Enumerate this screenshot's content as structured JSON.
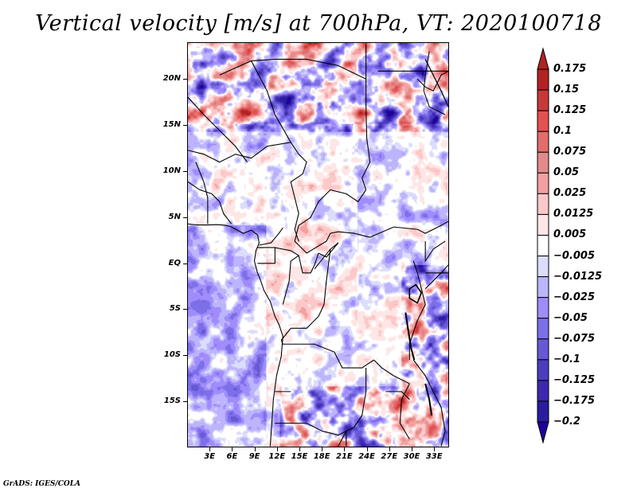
{
  "title": "Vertical velocity [m/s] at 700hPa, VT: 2020100718",
  "credit": "GrADS: IGES/COLA",
  "map": {
    "variable": "Vertical velocity",
    "units": "m/s",
    "level": "700hPa",
    "valid_time": "2020100718",
    "lon_range": [
      0,
      35
    ],
    "lat_range": [
      -20,
      24
    ],
    "lat_ticks": [
      {
        "value": 20,
        "label": "20N"
      },
      {
        "value": 15,
        "label": "15N"
      },
      {
        "value": 10,
        "label": "10N"
      },
      {
        "value": 5,
        "label": "5N"
      },
      {
        "value": 0,
        "label": "EQ"
      },
      {
        "value": -5,
        "label": "5S"
      },
      {
        "value": -10,
        "label": "10S"
      },
      {
        "value": -15,
        "label": "15S"
      }
    ],
    "lon_ticks": [
      {
        "value": 3,
        "label": "3E"
      },
      {
        "value": 6,
        "label": "6E"
      },
      {
        "value": 9,
        "label": "9E"
      },
      {
        "value": 12,
        "label": "12E"
      },
      {
        "value": 15,
        "label": "15E"
      },
      {
        "value": 18,
        "label": "18E"
      },
      {
        "value": 21,
        "label": "21E"
      },
      {
        "value": 24,
        "label": "24E"
      },
      {
        "value": 27,
        "label": "27E"
      },
      {
        "value": 30,
        "label": "30E"
      },
      {
        "value": 33,
        "label": "33E"
      }
    ]
  },
  "colorbar": {
    "levels": [
      {
        "label": "0.175",
        "color": "#b22222"
      },
      {
        "label": "0.15",
        "color": "#c93838"
      },
      {
        "label": "0.125",
        "color": "#e45050"
      },
      {
        "label": "0.1",
        "color": "#e46c6c"
      },
      {
        "label": "0.075",
        "color": "#e48a8a"
      },
      {
        "label": "0.05",
        "color": "#f4a0a0"
      },
      {
        "label": "0.025",
        "color": "#fcc8c8"
      },
      {
        "label": "0.0125",
        "color": "#fee6e6"
      },
      {
        "label": "0.005",
        "color": "#ffffff"
      },
      {
        "label": "−0.005",
        "color": "#dcdcfc"
      },
      {
        "label": "−0.0125",
        "color": "#bcb4fc"
      },
      {
        "label": "−0.025",
        "color": "#a08cfc"
      },
      {
        "label": "−0.05",
        "color": "#7c70e8"
      },
      {
        "label": "−0.075",
        "color": "#6858d4"
      },
      {
        "label": "−0.1",
        "color": "#4c3cc0"
      },
      {
        "label": "−0.125",
        "color": "#3c28b0"
      },
      {
        "label": "−0.175",
        "color": "#2c1ca0"
      },
      {
        "label": "−0.2",
        "color": "#2000a0"
      }
    ],
    "top_arrow_color": "#b22222",
    "bottom_arrow_color": "#2000a0"
  }
}
